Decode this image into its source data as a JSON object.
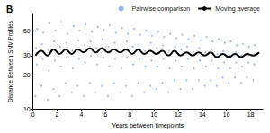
{
  "chart_data": {
    "type": "scatter",
    "title": "B",
    "x_label": "Years between timepoints",
    "y_label": "Distance Between SNV Profiles",
    "log": "y",
    "grid": false,
    "legend": "top",
    "xlim": [
      0,
      19
    ],
    "xticks": [
      0,
      2,
      4,
      6,
      8,
      10,
      12,
      14,
      16,
      18
    ],
    "ylim": [
      10,
      70
    ],
    "yticks": [
      10,
      20,
      30,
      50
    ],
    "series": [
      {
        "name": "Pairwise comparison",
        "type": "scatter",
        "color": "#4a7fe0",
        "marker": "circle",
        "x": [
          0.2,
          0.3,
          0.25,
          0.35,
          0.7,
          0.8,
          0.75,
          0.85,
          1.2,
          1.3,
          1.25,
          1.35,
          1.7,
          1.8,
          1.75,
          1.85,
          2.2,
          2.3,
          2.25,
          2.35,
          2.7,
          2.8,
          2.75,
          2.85,
          3.2,
          3.3,
          3.25,
          3.35,
          3.7,
          3.8,
          3.75,
          3.85,
          4.2,
          4.3,
          4.25,
          4.35,
          4.7,
          4.8,
          4.75,
          4.85,
          5.2,
          5.3,
          5.25,
          5.35,
          5.7,
          5.8,
          5.75,
          5.85,
          6.2,
          6.3,
          6.25,
          6.35,
          6.7,
          6.8,
          6.75,
          6.85,
          7.2,
          7.3,
          7.25,
          7.35,
          7.7,
          7.8,
          7.75,
          7.85,
          8.2,
          8.3,
          8.25,
          8.35,
          8.7,
          8.8,
          8.75,
          8.85,
          9.2,
          9.3,
          9.25,
          9.35,
          9.7,
          9.8,
          9.75,
          9.85,
          10.2,
          10.3,
          10.25,
          10.35,
          10.7,
          10.8,
          10.75,
          10.85,
          11.2,
          11.3,
          11.25,
          11.35,
          11.7,
          11.8,
          11.75,
          11.85,
          12.2,
          12.3,
          12.25,
          12.35,
          12.7,
          12.8,
          12.75,
          12.85,
          13.2,
          13.3,
          13.25,
          13.35,
          13.7,
          13.8,
          13.75,
          13.85,
          14.2,
          14.3,
          14.25,
          14.35,
          14.7,
          14.8,
          14.75,
          14.85,
          15.2,
          15.3,
          15.25,
          15.35,
          15.7,
          15.8,
          15.75,
          15.85,
          16.2,
          16.3,
          16.25,
          16.35,
          16.7,
          16.8,
          16.75,
          16.85,
          17.2,
          17.3,
          17.25,
          17.35,
          17.7,
          17.8,
          17.75,
          17.85,
          18.2,
          18.3,
          18.25,
          18.35
        ],
        "values": [
          13,
          25,
          35,
          52,
          16,
          28,
          38,
          48,
          12,
          22,
          34,
          58,
          15,
          27,
          40,
          50,
          13,
          24,
          36,
          60,
          17,
          29,
          39,
          47,
          14,
          23,
          33,
          55,
          16,
          28,
          41,
          50,
          13,
          26,
          37,
          57,
          17,
          30,
          40,
          49,
          14,
          25,
          35,
          54,
          16,
          29,
          42,
          51,
          13,
          24,
          36,
          56,
          17,
          28,
          39,
          48,
          14,
          23,
          34,
          53,
          16,
          29,
          40,
          47,
          13,
          25,
          36,
          52,
          17,
          28,
          38,
          46,
          14,
          24,
          33,
          50,
          16,
          27,
          39,
          45,
          15,
          24,
          35,
          49,
          17,
          28,
          37,
          44,
          14,
          23,
          33,
          47,
          18,
          27,
          36,
          43,
          15,
          24,
          34,
          46,
          18,
          28,
          36,
          42,
          15,
          23,
          32,
          45,
          18,
          27,
          35,
          41,
          16,
          24,
          32,
          44,
          18,
          27,
          34,
          40,
          16,
          23,
          31,
          42,
          19,
          26,
          33,
          39,
          17,
          23,
          30,
          40,
          19,
          26,
          32,
          37,
          17,
          24,
          30,
          38,
          19,
          26,
          31,
          36,
          18,
          25,
          30,
          37
        ]
      },
      {
        "name": "Moving average",
        "type": "line",
        "color": "#000000",
        "line_style": "solid",
        "x": [
          0.2,
          0.7,
          1.2,
          1.7,
          2.2,
          2.7,
          3.2,
          3.7,
          4.2,
          4.7,
          5.2,
          5.7,
          6.2,
          6.7,
          7.2,
          7.7,
          8.2,
          8.7,
          9.2,
          9.7,
          10.2,
          10.7,
          11.2,
          11.7,
          12.2,
          12.7,
          13.2,
          13.7,
          14.2,
          14.7,
          15.2,
          15.7,
          16.2,
          16.7,
          17.2,
          17.7,
          18.2,
          18.7
        ],
        "values": [
          30,
          33,
          30,
          34,
          31,
          34,
          31,
          34,
          32,
          35,
          32,
          35,
          32,
          34,
          32,
          34,
          31,
          34,
          31,
          33,
          31,
          33,
          30,
          33,
          30,
          32,
          30,
          32,
          30,
          32,
          29,
          31,
          29,
          31,
          29,
          31,
          30,
          32
        ]
      }
    ]
  }
}
